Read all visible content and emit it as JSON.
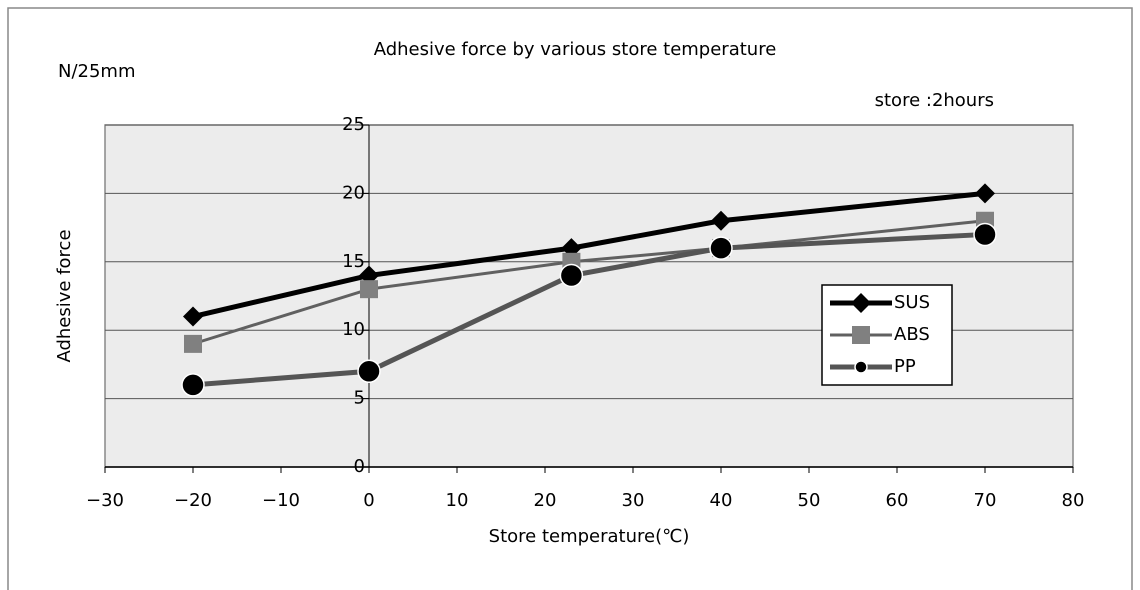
{
  "chart_data": {
    "type": "line",
    "title": "Adhesive force by various store temperature",
    "unit_label": "N/25mm",
    "note": "store :2hours",
    "xlabel": "Store temperature(℃)",
    "ylabel": "Adhesive force",
    "x": [
      -20,
      0,
      23,
      40,
      70
    ],
    "series": [
      {
        "name": "SUS",
        "color": "#000000",
        "marker": "diamond",
        "marker_color": "#000000",
        "line_width": 5,
        "values": [
          11,
          14,
          16,
          18,
          20
        ]
      },
      {
        "name": "ABS",
        "color": "#606060",
        "marker": "square",
        "marker_color": "#808080",
        "line_width": 3,
        "values": [
          9,
          13,
          15,
          16,
          18
        ]
      },
      {
        "name": "PP",
        "color": "#555555",
        "marker": "circle",
        "marker_color": "#000000",
        "line_width": 5,
        "values": [
          6,
          7,
          14,
          16,
          17
        ]
      }
    ],
    "xlim": [
      -30,
      80
    ],
    "xticks": [
      {
        "value": -30,
        "label": "−30"
      },
      {
        "value": -20,
        "label": "−20"
      },
      {
        "value": -10,
        "label": "−10"
      },
      0,
      10,
      20,
      30,
      40,
      50,
      60,
      70,
      80
    ],
    "ylim": [
      0,
      25
    ],
    "yticks": [
      0,
      5,
      10,
      15,
      20,
      25
    ],
    "grid": true
  }
}
